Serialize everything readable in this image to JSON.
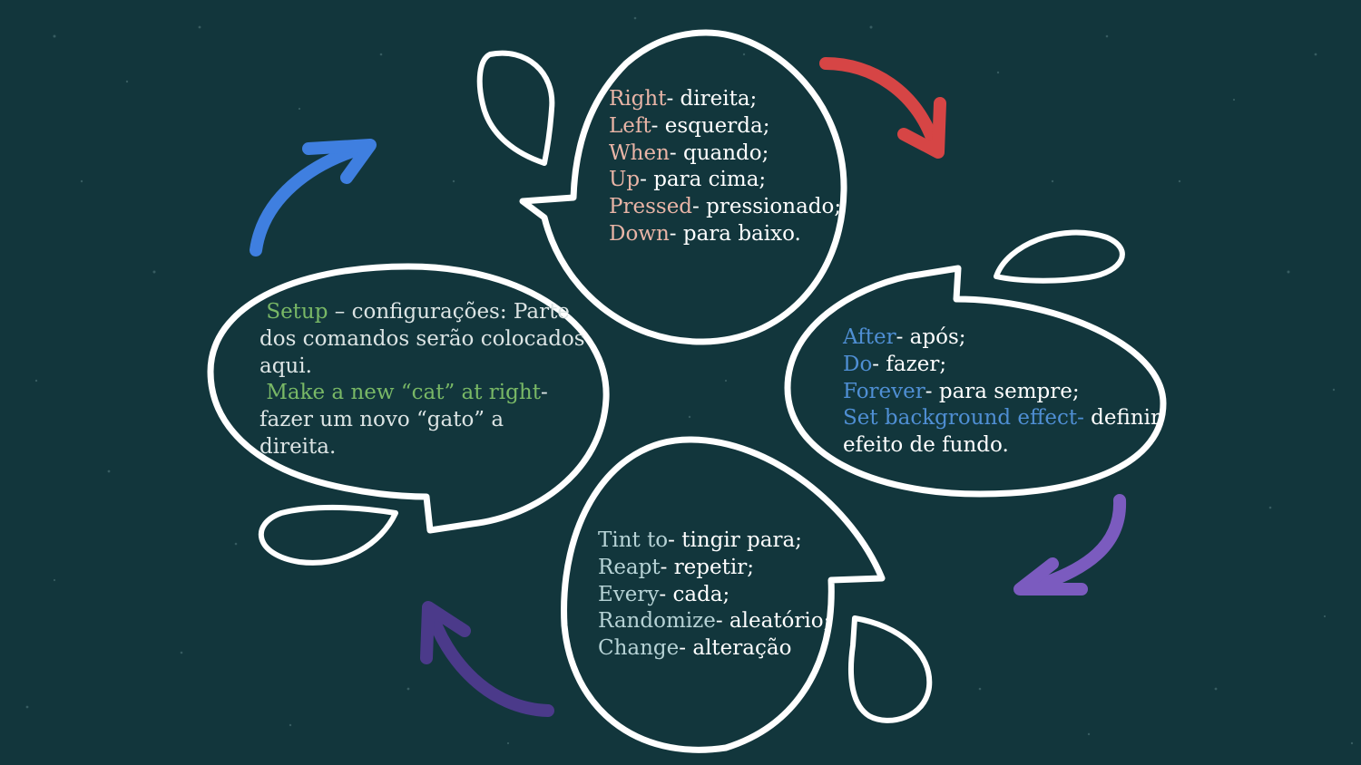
{
  "colors": {
    "background": "#12363c",
    "outline": "#ffffff",
    "arrow_red": "#d64545",
    "arrow_purple_light": "#7b5bbf",
    "arrow_purple_dark": "#4b3a8a",
    "arrow_blue": "#3f7fe0"
  },
  "top_bubble": [
    {
      "term": "Right",
      "def": "- direita;"
    },
    {
      "term": "Left",
      "def": "- esquerda;"
    },
    {
      "term": "When",
      "def": "- quando;"
    },
    {
      "term": "Up",
      "def": "- para cima;"
    },
    {
      "term": "Pressed",
      "def": "- pressionado;"
    },
    {
      "term": "Down",
      "def": "- para baixo."
    }
  ],
  "right_bubble": [
    {
      "term": "After",
      "def": "- após;"
    },
    {
      "term": "Do",
      "def": "- fazer;"
    },
    {
      "term": "Forever",
      "def": "-  para sempre;"
    },
    {
      "term": "Set background effect-",
      "def": " definir"
    },
    {
      "term": "",
      "def": "efeito de fundo."
    }
  ],
  "bottom_bubble": [
    {
      "term": "Tint to",
      "def": "- tingir para;"
    },
    {
      "term": "Reapt",
      "def": "- repetir;"
    },
    {
      "term": "Every",
      "def": "- cada;"
    },
    {
      "term": "Randomize",
      "def": "- aleatório;"
    },
    {
      "term": "Change",
      "def": "- alteração"
    }
  ],
  "left_bubble": {
    "setup_term": "Setup",
    "setup_def": " – configurações: Parte dos comandos serão colocados aqui.",
    "make_term": "Make a new “cat” at right",
    "make_def": "- fazer um novo “gato” a direita."
  }
}
